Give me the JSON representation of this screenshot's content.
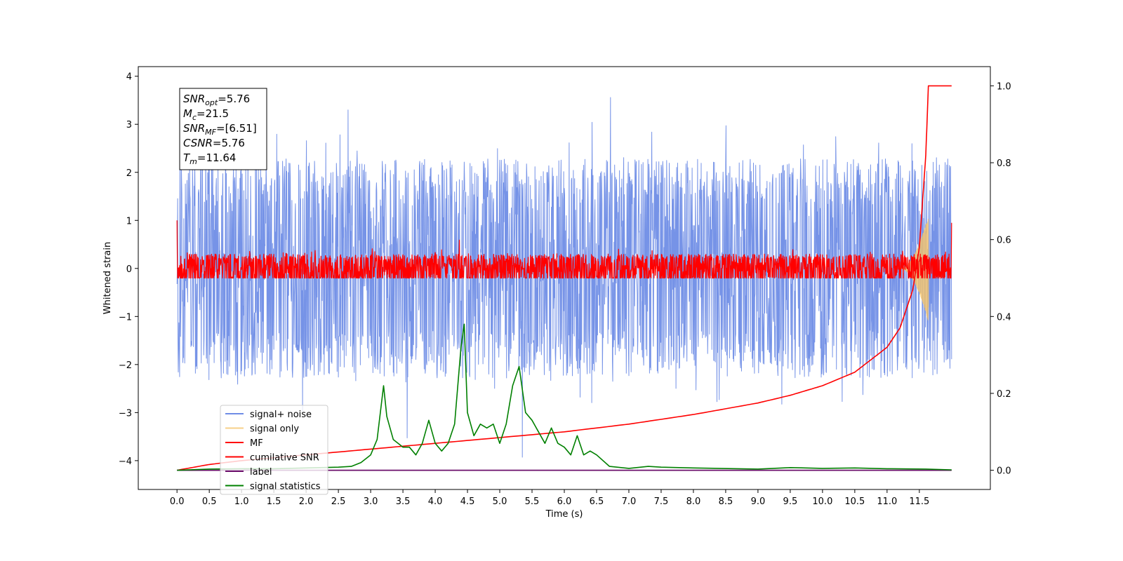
{
  "chart_data": {
    "type": "line",
    "title": "",
    "xlabel": "Time (s)",
    "ylabel": "Whitened strain",
    "y2label": "",
    "xlim": [
      -0.6,
      12.6
    ],
    "ylim": [
      -4.6,
      4.2
    ],
    "y2lim": [
      -0.05,
      1.05
    ],
    "x_ticks": [
      0.0,
      0.5,
      1.0,
      1.5,
      2.0,
      2.5,
      3.0,
      3.5,
      4.0,
      4.5,
      5.0,
      5.5,
      6.0,
      6.5,
      7.0,
      7.5,
      8.0,
      8.5,
      9.0,
      9.5,
      10.0,
      10.5,
      11.0,
      11.5
    ],
    "x_tick_labels": [
      "0.0",
      "0.5",
      "1.0",
      "1.5",
      "2.0",
      "2.5",
      "3.0",
      "3.5",
      "4.0",
      "4.5",
      "5.0",
      "5.5",
      "6.0",
      "6.5",
      "7.0",
      "7.5",
      "8.0",
      "8.5",
      "9.0",
      "9.5",
      "10.0",
      "10.5",
      "11.0",
      "11.5"
    ],
    "y_ticks": [
      -4,
      -3,
      -2,
      -1,
      0,
      1,
      2,
      3,
      4
    ],
    "y_tick_labels": [
      "−4",
      "−3",
      "−2",
      "−1",
      "0",
      "1",
      "2",
      "3",
      "4"
    ],
    "y2_ticks": [
      0.0,
      0.2,
      0.4,
      0.6,
      0.8,
      1.0
    ],
    "y2_tick_labels": [
      "0.0",
      "0.2",
      "0.4",
      "0.6",
      "0.8",
      "1.0"
    ],
    "grid": false,
    "legend_position": "lower-left",
    "series": [
      {
        "name": "signal+ noise",
        "axis": "left",
        "color": "#6f8de6",
        "kind": "noise",
        "x_range": [
          0.0,
          12.0
        ],
        "center": 0.0,
        "typical_amplitude": 1.9,
        "max": 3.8,
        "min": -4.1
      },
      {
        "name": "signal only",
        "axis": "left",
        "color": "#f5c46a",
        "kind": "chirp",
        "x_range": [
          11.2,
          11.64
        ],
        "peak_amplitude": 1.1
      },
      {
        "name": "MF",
        "axis": "left",
        "color": "#ff0000",
        "kind": "noise",
        "x_range": [
          0.0,
          12.0
        ],
        "center": 0.0,
        "typical_amplitude": 0.25,
        "max": 1.0,
        "min": -0.2
      },
      {
        "name": "cumilative SNR",
        "axis": "right",
        "color": "#ff0000",
        "kind": "curve",
        "x": [
          0.0,
          0.5,
          1.0,
          2.0,
          3.0,
          4.0,
          5.0,
          6.0,
          7.0,
          8.0,
          9.0,
          9.5,
          10.0,
          10.5,
          11.0,
          11.2,
          11.4,
          11.5,
          11.6,
          11.64,
          12.0
        ],
        "y": [
          0.0,
          0.015,
          0.025,
          0.04,
          0.055,
          0.07,
          0.085,
          0.1,
          0.12,
          0.145,
          0.175,
          0.195,
          0.22,
          0.255,
          0.32,
          0.37,
          0.47,
          0.58,
          0.82,
          1.0,
          1.0
        ]
      },
      {
        "name": "label",
        "axis": "right",
        "color": "#6b0f6b",
        "kind": "flat",
        "x": [
          0.0,
          12.0
        ],
        "y": [
          0.0,
          0.0
        ]
      },
      {
        "name": "signal statistics",
        "axis": "right",
        "color": "#008000",
        "kind": "curve",
        "x": [
          0.0,
          0.5,
          1.0,
          1.5,
          2.0,
          2.5,
          2.7,
          2.85,
          3.0,
          3.1,
          3.2,
          3.25,
          3.35,
          3.5,
          3.6,
          3.7,
          3.8,
          3.9,
          4.0,
          4.1,
          4.2,
          4.3,
          4.4,
          4.45,
          4.5,
          4.6,
          4.7,
          4.8,
          4.9,
          5.0,
          5.1,
          5.2,
          5.3,
          5.4,
          5.5,
          5.6,
          5.7,
          5.8,
          5.9,
          6.0,
          6.1,
          6.2,
          6.3,
          6.4,
          6.5,
          6.7,
          7.0,
          7.3,
          7.5,
          8.0,
          9.0,
          9.5,
          10.0,
          10.5,
          11.0,
          11.6,
          12.0
        ],
        "y": [
          0.0,
          0.003,
          0.004,
          0.004,
          0.006,
          0.008,
          0.01,
          0.02,
          0.04,
          0.08,
          0.22,
          0.14,
          0.08,
          0.06,
          0.06,
          0.04,
          0.07,
          0.13,
          0.07,
          0.05,
          0.07,
          0.12,
          0.32,
          0.38,
          0.15,
          0.09,
          0.12,
          0.11,
          0.12,
          0.07,
          0.12,
          0.22,
          0.27,
          0.15,
          0.13,
          0.1,
          0.07,
          0.11,
          0.07,
          0.06,
          0.04,
          0.09,
          0.04,
          0.05,
          0.04,
          0.01,
          0.005,
          0.01,
          0.008,
          0.006,
          0.003,
          0.007,
          0.005,
          0.006,
          0.004,
          0.003,
          0.001
        ]
      }
    ],
    "annotation": {
      "lines": [
        {
          "base": "SNR",
          "sub": "opt",
          "rest": "=5.76"
        },
        {
          "base": "M",
          "sub": "c",
          "rest": "=21.5"
        },
        {
          "base": "SNR",
          "sub": "MF",
          "rest": "=[6.51]"
        },
        {
          "base": "CSNR",
          "sub": "",
          "rest": "=5.76"
        },
        {
          "base": "T",
          "sub": "m",
          "rest": "=11.64"
        }
      ]
    }
  }
}
